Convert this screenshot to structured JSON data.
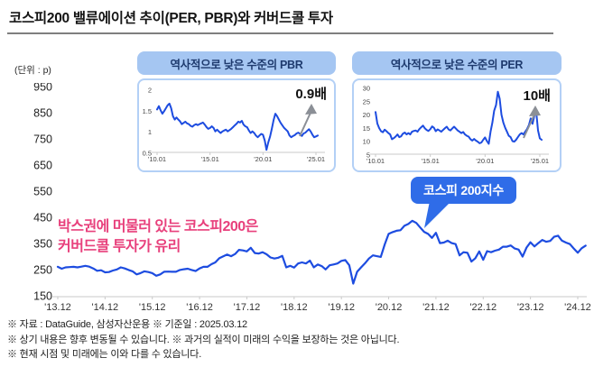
{
  "page": {
    "title": "코스피200 밸류에이션 추이(PER, PBR)와 커버드콜 투자",
    "unit_label": "(단위 : p)",
    "callout_label": "코스피 200지수",
    "box_annotation": {
      "line1": "박스권에 머물러 있는 코스피200은",
      "line2": "커버드콜 투자가 유리"
    },
    "footnotes": [
      "※ 자료 : DataGuide, 삼성자산운용  ※ 기준일 : 2025.03.12",
      "※ 상기 내용은 향후 변동될 수 있습니다. ※ 과거의 실적이 미래의 수익을 보장하는 것은 아닙니다.",
      "※ 현재 시점 및 미래에는 이와 다를 수 있습니다."
    ],
    "colors": {
      "line_blue": "#1d4ce0",
      "callout_blue": "#2f6ce8",
      "header_pill_blue": "#a5c6f2",
      "panel_border_blue": "#b3d0f6",
      "pink": "#e8407c",
      "arrow_gray": "#8b8f96"
    }
  },
  "chart_data": [
    {
      "id": "pbr_inset",
      "type": "line",
      "title": "역사적으로 낮은 수준의 PBR",
      "annotation": "0.9배",
      "legend_position": "none",
      "grid": false,
      "y_ticks": [
        2,
        1.5,
        1,
        0.5
      ],
      "x_ticks": [
        "'10.01",
        "'15.01",
        "'20.01",
        "'25.01"
      ],
      "x_tick_years": [
        2010,
        2015,
        2020,
        2025
      ],
      "xlim": [
        2010,
        2025
      ],
      "ylim": [
        0.5,
        2
      ],
      "x_start": 2010.0,
      "x_step": 0.16667,
      "values": [
        1.52,
        1.6,
        1.5,
        1.42,
        1.48,
        1.55,
        1.62,
        1.66,
        1.55,
        1.36,
        1.28,
        1.33,
        1.28,
        1.24,
        1.17,
        1.2,
        1.23,
        1.19,
        1.17,
        1.13,
        1.11,
        1.15,
        1.17,
        1.15,
        1.17,
        1.19,
        1.21,
        1.16,
        1.1,
        1.06,
        1.08,
        1.12,
        1.08,
        1.0,
        1.04,
        1.0,
        0.96,
        1.0,
        1.02,
        1.04,
        1.0,
        1.03,
        1.06,
        1.1,
        1.14,
        1.18,
        1.23,
        1.21,
        1.25,
        1.16,
        1.12,
        1.1,
        1.02,
        0.96,
        1.0,
        0.96,
        0.9,
        0.86,
        0.9,
        0.94,
        0.92,
        0.78,
        0.56,
        0.74,
        0.88,
        1.06,
        1.27,
        1.42,
        1.36,
        1.28,
        1.2,
        1.14,
        1.08,
        1.04,
        1.0,
        0.9,
        0.86,
        0.89,
        0.91,
        0.95,
        0.97,
        0.94,
        0.89,
        0.95,
        0.97,
        1.01,
        1.05,
        1.0,
        0.92,
        0.86,
        0.88,
        0.9
      ]
    },
    {
      "id": "per_inset",
      "type": "line",
      "title": "역사적으로 낮은 수준의 PER",
      "annotation": "10배",
      "legend_position": "none",
      "grid": false,
      "y_ticks": [
        30,
        25,
        20,
        15,
        10,
        5
      ],
      "x_ticks": [
        "'10.01",
        "'15.01",
        "'20.01",
        "'25.01"
      ],
      "x_tick_years": [
        2010,
        2015,
        2020,
        2025
      ],
      "xlim": [
        2010,
        2025
      ],
      "ylim": [
        5,
        30
      ],
      "x_start": 2010.0,
      "x_step": 0.16667,
      "values": [
        20.8,
        16.5,
        14.8,
        13.6,
        13.2,
        14.2,
        13.6,
        12.9,
        12.4,
        10.6,
        11.0,
        11.6,
        12.4,
        11.4,
        11.7,
        12.7,
        13.1,
        12.4,
        12.9,
        12.4,
        13.4,
        13.7,
        13.9,
        13.4,
        14.4,
        15.1,
        15.7,
        14.7,
        14.1,
        13.7,
        14.4,
        15.4,
        14.9,
        13.6,
        14.3,
        13.9,
        13.4,
        14.1,
        14.7,
        15.3,
        14.3,
        13.9,
        14.6,
        15.3,
        14.6,
        13.9,
        13.4,
        12.9,
        13.3,
        12.4,
        11.9,
        11.6,
        10.6,
        10.1,
        10.7,
        10.1,
        9.7,
        9.1,
        9.4,
        10.4,
        11.3,
        9.9,
        8.9,
        13.4,
        16.8,
        21.3,
        23.4,
        28.4,
        25.8,
        19.8,
        16.8,
        14.9,
        13.4,
        11.9,
        11.4,
        9.9,
        9.7,
        10.4,
        11.4,
        12.4,
        12.9,
        12.4,
        13.4,
        14.4,
        15.9,
        18.4,
        16.4,
        19.4,
        20.9,
        13.9,
        10.9,
        10.4
      ]
    },
    {
      "id": "main",
      "type": "line",
      "title": "코스피 200지수",
      "ylabel": "(단위 : p)",
      "legend_position": "none",
      "grid": false,
      "y_ticks": [
        950,
        850,
        750,
        650,
        550,
        450,
        350,
        250,
        150
      ],
      "x_ticks": [
        "'13.12",
        "'14.12",
        "'15.12",
        "'16.12",
        "'17.12",
        "'18.12",
        "'19.12",
        "'20.12",
        "'21.12",
        "'22.12",
        "'23.12",
        "'24.12"
      ],
      "x_tick_years": [
        2013.9167,
        2014.9167,
        2015.9167,
        2016.9167,
        2017.9167,
        2018.9167,
        2019.9167,
        2020.9167,
        2021.9167,
        2022.9167,
        2023.9167,
        2024.9167
      ],
      "xlim": [
        2013.9167,
        2024.9167
      ],
      "ylim": [
        150,
        950
      ],
      "x_start": 2013.9167,
      "x_step": 0.08333,
      "values": [
        264,
        257,
        262,
        263,
        264,
        262,
        265,
        268,
        265,
        258,
        249,
        251,
        243,
        244,
        250,
        254,
        262,
        258,
        252,
        247,
        235,
        240,
        247,
        244,
        240,
        230,
        235,
        245,
        246,
        245,
        245,
        252,
        255,
        257,
        252,
        248,
        258,
        264,
        264,
        274,
        281,
        297,
        304,
        311,
        305,
        313,
        329,
        327,
        323,
        337,
        317,
        315,
        320,
        312,
        300,
        296,
        299,
        306,
        262,
        268,
        261,
        277,
        281,
        277,
        288,
        262,
        273,
        267,
        254,
        270,
        273,
        277,
        287,
        290,
        270,
        200,
        245,
        262,
        278,
        296,
        308,
        305,
        302,
        350,
        390,
        397,
        402,
        404,
        421,
        428,
        440,
        432,
        415,
        398,
        390,
        375,
        394,
        355,
        357,
        364,
        355,
        351,
        308,
        320,
        318,
        284,
        297,
        323,
        291,
        324,
        320,
        326,
        330,
        341,
        341,
        346,
        334,
        330,
        303,
        338,
        358,
        342,
        355,
        367,
        360,
        363,
        379,
        383,
        364,
        357,
        351,
        334,
        318,
        335,
        345
      ]
    }
  ]
}
